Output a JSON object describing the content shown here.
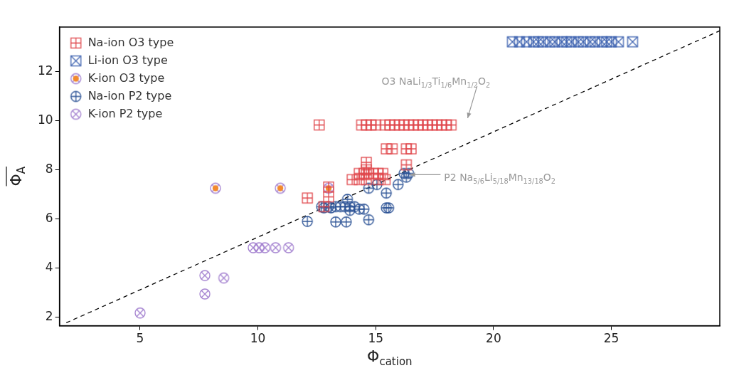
{
  "chart_data": {
    "type": "scatter",
    "xlabel": "Φcation",
    "ylabel": "ΦA",
    "xlim": [
      1.58,
      29.6
    ],
    "ylim": [
      1.66,
      13.8
    ],
    "xticks": [
      5,
      10,
      15,
      20,
      25
    ],
    "yticks": [
      2,
      4,
      6,
      8,
      10,
      12
    ],
    "grid": false,
    "legend": "upper left",
    "series": [
      {
        "name": "Na-ion O3 type",
        "marker": "square_plus",
        "color": "#e0474c",
        "x": [
          12.6,
          14.4,
          14.6,
          14.8,
          15.0,
          15.4,
          15.6,
          15.8,
          16.0,
          16.2,
          16.4,
          16.6,
          16.8,
          17.0,
          17.2,
          17.4,
          17.6,
          17.8,
          18.0,
          18.2,
          15.45,
          15.7,
          16.3,
          16.5,
          14.6,
          14.6,
          16.3,
          14.3,
          14.5,
          14.7,
          14.9,
          15.1,
          15.3,
          14.0,
          14.3,
          14.6,
          15.1,
          15.4,
          12.1,
          13.0,
          13.0,
          12.8
        ],
        "values": [
          9.82,
          9.82,
          9.82,
          9.82,
          9.82,
          9.82,
          9.82,
          9.82,
          9.82,
          9.82,
          9.82,
          9.82,
          9.82,
          9.82,
          9.82,
          9.82,
          9.82,
          9.82,
          9.82,
          9.82,
          8.85,
          8.85,
          8.85,
          8.85,
          8.3,
          8.0,
          8.2,
          7.85,
          7.85,
          7.85,
          7.85,
          7.85,
          7.85,
          7.6,
          7.6,
          7.6,
          7.6,
          7.6,
          6.85,
          7.3,
          6.9,
          6.5
        ]
      },
      {
        "name": "Li-ion O3 type",
        "marker": "square_x",
        "color": "#3d62b0",
        "x": [
          20.8,
          21.1,
          21.4,
          21.7,
          21.9,
          22.1,
          22.4,
          22.6,
          22.9,
          23.1,
          23.3,
          23.6,
          23.8,
          24.1,
          24.3,
          24.6,
          24.8,
          25.0,
          25.3,
          25.9
        ],
        "values": [
          13.2,
          13.2,
          13.2,
          13.2,
          13.2,
          13.2,
          13.2,
          13.2,
          13.2,
          13.2,
          13.2,
          13.2,
          13.2,
          13.2,
          13.2,
          13.2,
          13.2,
          13.2,
          13.2,
          13.2
        ]
      },
      {
        "name": "K-ion O3 type",
        "marker": "circle_x_filled",
        "color": "#f28a2e",
        "x": [
          8.2,
          10.95,
          13.0
        ],
        "values": [
          7.25,
          7.25,
          7.25
        ]
      },
      {
        "name": "Na-ion P2 type",
        "marker": "circle_plus",
        "color": "#2f5597",
        "x": [
          12.1,
          12.8,
          13.1,
          13.3,
          13.75,
          12.7,
          13.0,
          13.3,
          13.5,
          13.7,
          13.9,
          14.1,
          13.8,
          14.5,
          14.7,
          15.45,
          15.55,
          15.45,
          15.05,
          15.95,
          16.2,
          16.4,
          16.3,
          14.7,
          13.9,
          14.3
        ],
        "values": [
          5.9,
          6.45,
          6.45,
          5.88,
          5.88,
          6.5,
          6.5,
          6.5,
          6.5,
          6.5,
          6.5,
          6.5,
          6.8,
          6.4,
          5.97,
          6.45,
          6.45,
          7.05,
          7.4,
          7.4,
          7.85,
          7.85,
          7.7,
          7.25,
          6.35,
          6.4
        ]
      },
      {
        "name": "K-ion P2 type",
        "marker": "circle_x",
        "color": "#a27fcf",
        "x": [
          5.0,
          7.75,
          7.75,
          8.55,
          9.8,
          10.05,
          10.3,
          10.75,
          11.3
        ],
        "values": [
          2.18,
          2.95,
          3.7,
          3.6,
          4.83,
          4.83,
          4.83,
          4.83,
          4.83
        ]
      },
      {
        "type": "line",
        "line_style": "dashed",
        "color": "#000000",
        "x": [
          1.87,
          29.6
        ],
        "values": [
          1.78,
          13.65
        ]
      }
    ],
    "annotations": [
      {
        "text": "O3 NaLi1/3Ti1/6Mn1/2O2",
        "x": 15.25,
        "y": 11.6,
        "color": "#999999",
        "arrow": [
          [
            19.3,
            11.4
          ],
          [
            18.9,
            10.1
          ]
        ]
      },
      {
        "text": "P2 Na5/6Li5/18Mn13/18O2",
        "x": 17.9,
        "y": 7.7,
        "color": "#999999",
        "arrow": [
          [
            17.75,
            7.8
          ],
          [
            16.45,
            7.8
          ]
        ]
      }
    ]
  }
}
